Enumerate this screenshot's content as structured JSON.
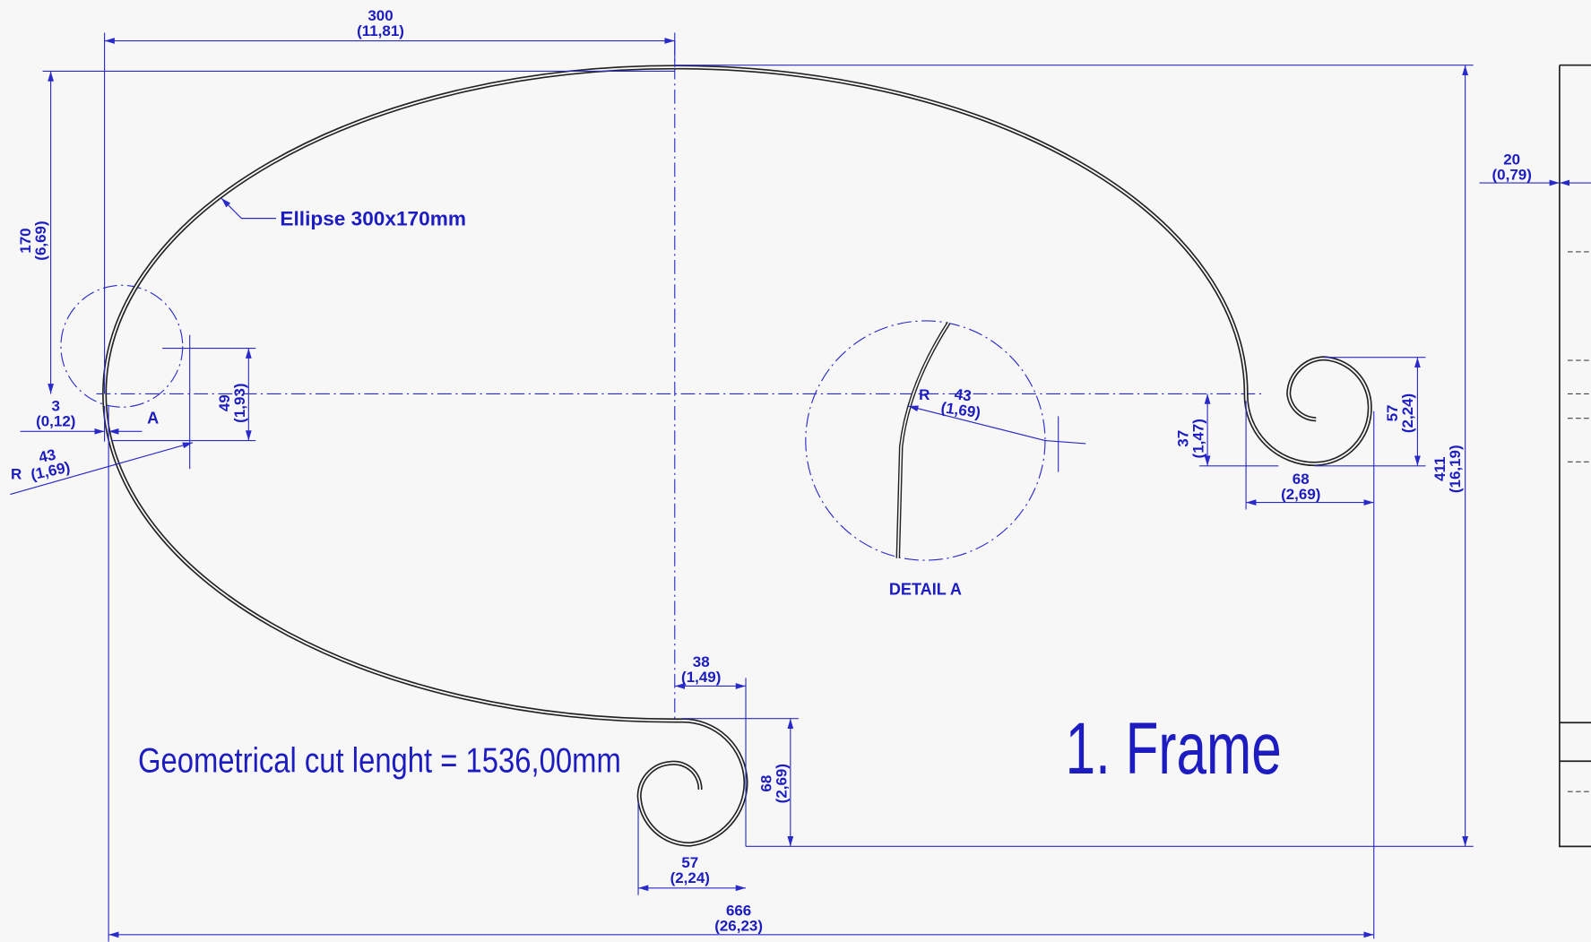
{
  "annotations": {
    "ellipse": "Ellipse 300x170mm",
    "detail_marker": "A",
    "detail_title": "DETAIL A",
    "cut_length": "Geometrical cut lenght = 1536,00mm",
    "part_title": "1. Frame"
  },
  "dimensions": [
    {
      "mm": "300",
      "inch": "(11,81)"
    },
    {
      "mm": "170",
      "inch": "(6,69)"
    },
    {
      "mm": "3",
      "inch": "(0,12)"
    },
    {
      "prefix": "R",
      "mm": "43",
      "inch": "(1,69)"
    },
    {
      "mm": "49",
      "inch": "(1,93)"
    },
    {
      "prefix": "R",
      "mm": "43",
      "inch": "(1,69)"
    },
    {
      "mm": "37",
      "inch": "(1,47)"
    },
    {
      "mm": "57",
      "inch": "(2,24)"
    },
    {
      "mm": "68",
      "inch": "(2,69)"
    },
    {
      "mm": "411",
      "inch": "(16,19)"
    },
    {
      "mm": "20",
      "inch": "(0,79)"
    },
    {
      "mm": "38",
      "inch": "(1,49)"
    },
    {
      "mm": "68",
      "inch": "(2,69)"
    },
    {
      "mm": "57",
      "inch": "(2,24)"
    },
    {
      "mm": "666",
      "inch": "(26,23)"
    }
  ]
}
